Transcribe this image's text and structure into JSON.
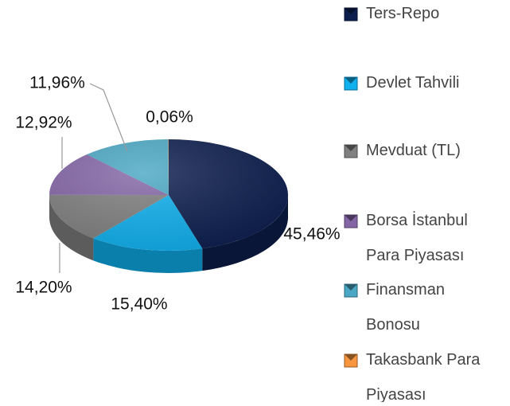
{
  "chart_data": {
    "type": "pie",
    "categories": [
      "Ters-Repo",
      "Devlet Tahvili",
      "Mevduat (TL)",
      "Borsa İstanbul Para Piyasası",
      "Finansman Bonosu",
      "Takasbank Para Piyasası"
    ],
    "values": [
      45.46,
      15.4,
      14.2,
      12.92,
      11.96,
      0.06
    ],
    "value_labels": [
      "45,46%",
      "15,40%",
      "14,20%",
      "12,92%",
      "11,96%",
      "0,06%"
    ],
    "colors": [
      "#0c1e4e",
      "#0fb0ee",
      "#808080",
      "#8466a6",
      "#4aa8c4",
      "#f7963f"
    ],
    "legend": "right"
  }
}
